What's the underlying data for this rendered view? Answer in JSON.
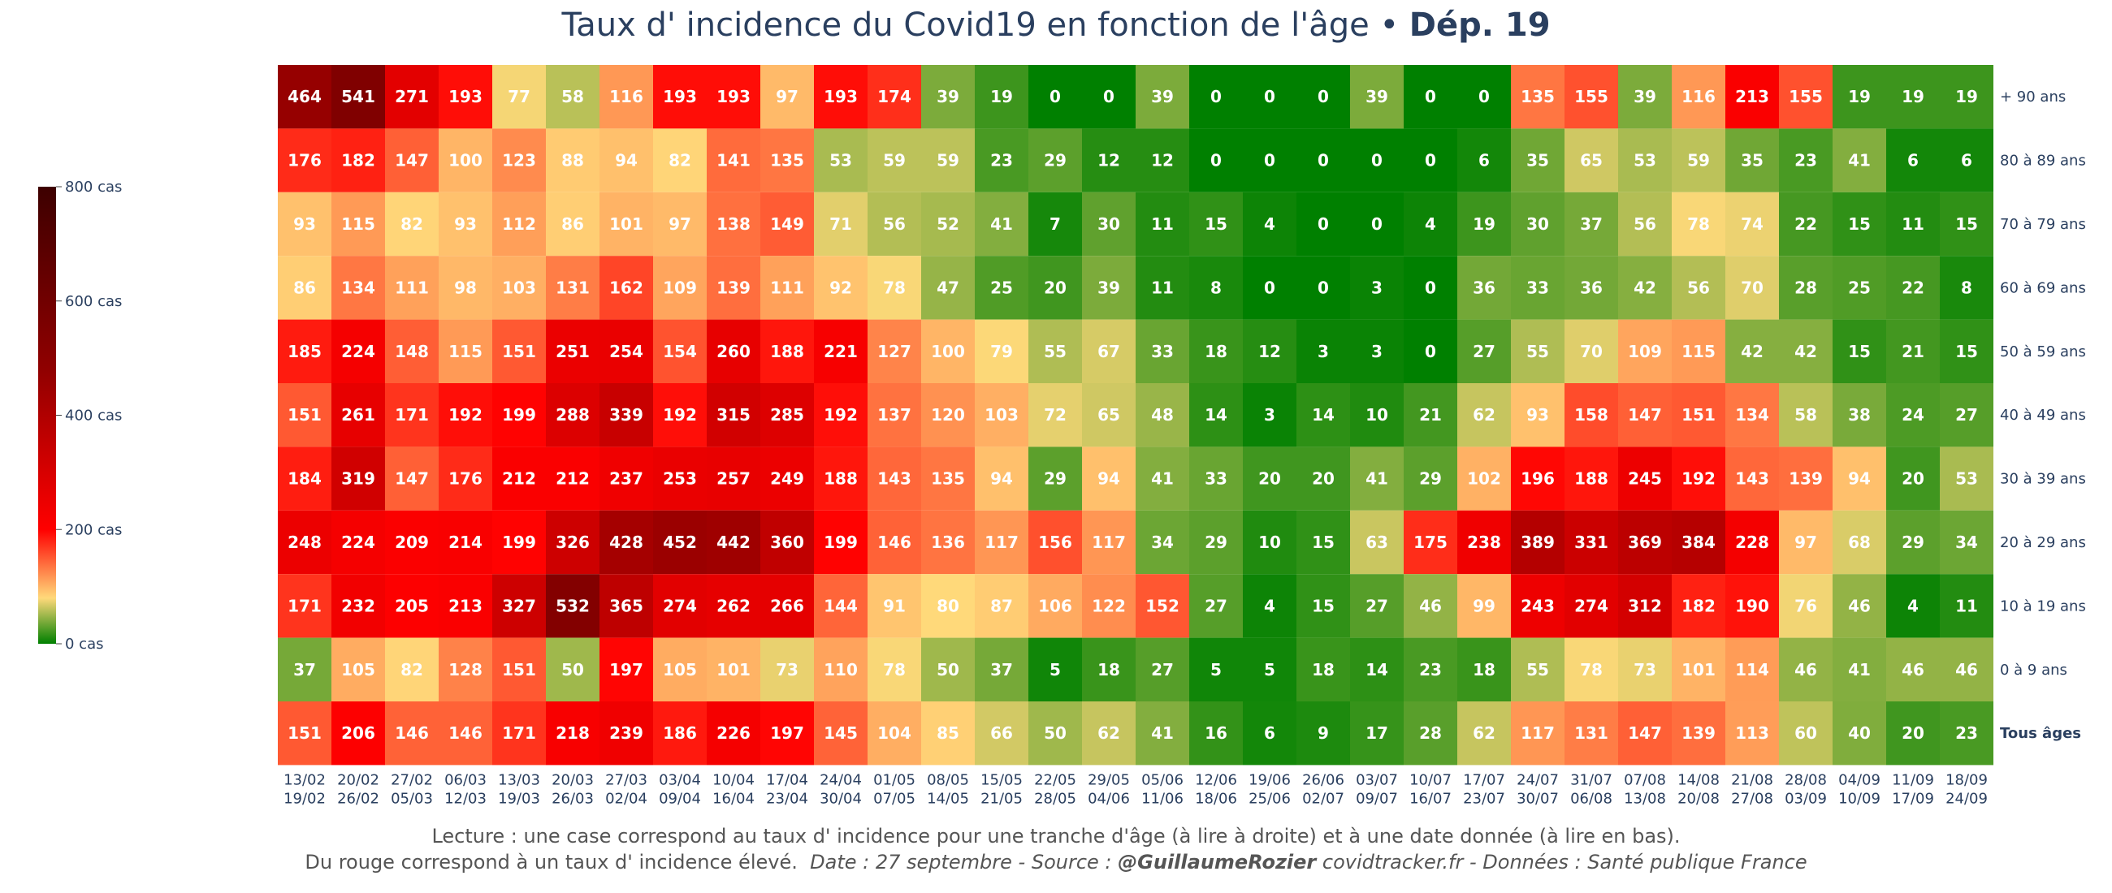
{
  "title": {
    "main": "Taux d' incidence du Covid19 en fonction de l'âge •",
    "dep": "Dép. 19"
  },
  "caption": {
    "line1": "Lecture : une case correspond au taux d' incidence pour une tranche d'âge (à lire à droite) et à une date donnée (à lire en bas).",
    "line2_a": "Du rouge correspond à un taux d' incidence élevé.",
    "line2_b": "Date : 27 septembre - Source :",
    "line2_author": "@GuillaumeRozier",
    "line2_c": "covidtracker.fr - Données : Santé publique France"
  },
  "colors": {
    "scale": [
      "#008000",
      "#ffd97a",
      "#ff0000",
      "#900000",
      "#3d0000"
    ],
    "text": "#ffffff",
    "axis_text": "#2a3f5f"
  },
  "chart_data": {
    "type": "heatmap",
    "zlim": [
      0,
      800
    ],
    "colorbar": {
      "ticks": [
        0,
        200,
        400,
        600,
        800
      ],
      "tick_labels": [
        "0 cas",
        "200 cas",
        "400 cas",
        "600 cas",
        "800 cas"
      ]
    },
    "x": [
      [
        "13/02",
        "19/02"
      ],
      [
        "20/02",
        "26/02"
      ],
      [
        "27/02",
        "05/03"
      ],
      [
        "06/03",
        "12/03"
      ],
      [
        "13/03",
        "19/03"
      ],
      [
        "20/03",
        "26/03"
      ],
      [
        "27/03",
        "02/04"
      ],
      [
        "03/04",
        "09/04"
      ],
      [
        "10/04",
        "16/04"
      ],
      [
        "17/04",
        "23/04"
      ],
      [
        "24/04",
        "30/04"
      ],
      [
        "01/05",
        "07/05"
      ],
      [
        "08/05",
        "14/05"
      ],
      [
        "15/05",
        "21/05"
      ],
      [
        "22/05",
        "28/05"
      ],
      [
        "29/05",
        "04/06"
      ],
      [
        "05/06",
        "11/06"
      ],
      [
        "12/06",
        "18/06"
      ],
      [
        "19/06",
        "25/06"
      ],
      [
        "26/06",
        "02/07"
      ],
      [
        "03/07",
        "09/07"
      ],
      [
        "10/07",
        "16/07"
      ],
      [
        "17/07",
        "23/07"
      ],
      [
        "24/07",
        "30/07"
      ],
      [
        "31/07",
        "06/08"
      ],
      [
        "07/08",
        "13/08"
      ],
      [
        "14/08",
        "20/08"
      ],
      [
        "21/08",
        "27/08"
      ],
      [
        "28/08",
        "03/09"
      ],
      [
        "04/09",
        "10/09"
      ],
      [
        "11/09",
        "17/09"
      ],
      [
        "18/09",
        "24/09"
      ]
    ],
    "y": [
      "+ 90 ans",
      "80 à 89 ans",
      "70 à 79 ans",
      "60 à 69 ans",
      "50 à 59 ans",
      "40 à 49 ans",
      "30 à 39 ans",
      "20 à 29 ans",
      "10 à 19 ans",
      "0 à 9 ans",
      "Tous âges"
    ],
    "y_bold": [
      "Tous âges"
    ],
    "z": [
      [
        464,
        541,
        271,
        193,
        77,
        58,
        116,
        193,
        193,
        97,
        193,
        174,
        39,
        19,
        0,
        0,
        39,
        0,
        0,
        0,
        39,
        0,
        0,
        135,
        155,
        39,
        116,
        213,
        155,
        19,
        19,
        19
      ],
      [
        176,
        182,
        147,
        100,
        123,
        88,
        94,
        82,
        141,
        135,
        53,
        59,
        59,
        23,
        29,
        12,
        12,
        0,
        0,
        0,
        0,
        0,
        6,
        35,
        65,
        53,
        59,
        35,
        23,
        41,
        6,
        6
      ],
      [
        93,
        115,
        82,
        93,
        112,
        86,
        101,
        97,
        138,
        149,
        71,
        56,
        52,
        41,
        7,
        30,
        11,
        15,
        4,
        0,
        0,
        4,
        19,
        30,
        37,
        56,
        78,
        74,
        22,
        15,
        11,
        15
      ],
      [
        86,
        134,
        111,
        98,
        103,
        131,
        162,
        109,
        139,
        111,
        92,
        78,
        47,
        25,
        20,
        39,
        11,
        8,
        0,
        0,
        3,
        0,
        36,
        33,
        36,
        42,
        56,
        70,
        28,
        25,
        22,
        8
      ],
      [
        185,
        224,
        148,
        115,
        151,
        251,
        254,
        154,
        260,
        188,
        221,
        127,
        100,
        79,
        55,
        67,
        33,
        18,
        12,
        3,
        3,
        0,
        27,
        55,
        70,
        109,
        115,
        42,
        42,
        15,
        21,
        15
      ],
      [
        151,
        261,
        171,
        192,
        199,
        288,
        339,
        192,
        315,
        285,
        192,
        137,
        120,
        103,
        72,
        65,
        48,
        14,
        3,
        14,
        10,
        21,
        62,
        93,
        158,
        147,
        151,
        134,
        58,
        38,
        24,
        27
      ],
      [
        184,
        319,
        147,
        176,
        212,
        212,
        237,
        253,
        257,
        249,
        188,
        143,
        135,
        94,
        29,
        94,
        41,
        33,
        20,
        20,
        41,
        29,
        102,
        196,
        188,
        245,
        192,
        143,
        139,
        94,
        20,
        53
      ],
      [
        248,
        224,
        209,
        214,
        199,
        326,
        428,
        452,
        442,
        360,
        199,
        146,
        136,
        117,
        156,
        117,
        34,
        29,
        10,
        15,
        63,
        175,
        238,
        389,
        331,
        369,
        384,
        228,
        97,
        68,
        29,
        34
      ],
      [
        171,
        232,
        205,
        213,
        327,
        532,
        365,
        274,
        262,
        266,
        144,
        91,
        80,
        87,
        106,
        122,
        152,
        27,
        4,
        15,
        27,
        46,
        99,
        243,
        274,
        312,
        182,
        190,
        76,
        46,
        4,
        11
      ],
      [
        37,
        105,
        82,
        128,
        151,
        50,
        197,
        105,
        101,
        73,
        110,
        78,
        50,
        37,
        5,
        18,
        27,
        5,
        5,
        18,
        14,
        23,
        18,
        55,
        78,
        73,
        101,
        114,
        46,
        41,
        46,
        46
      ],
      [
        151,
        206,
        146,
        146,
        171,
        218,
        239,
        186,
        226,
        197,
        145,
        104,
        85,
        66,
        50,
        62,
        41,
        16,
        6,
        9,
        17,
        28,
        62,
        117,
        131,
        147,
        139,
        113,
        60,
        40,
        20,
        23
      ]
    ]
  }
}
